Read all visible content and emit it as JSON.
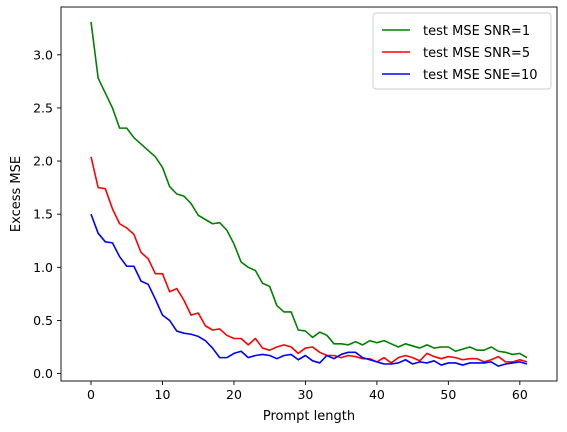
{
  "chart_data": {
    "type": "line",
    "title": "",
    "xlabel": "Prompt length",
    "ylabel": "Excess MSE",
    "xlim": [
      -4.2,
      65.2
    ],
    "ylim": [
      -0.07,
      3.45
    ],
    "xticks": [
      0,
      10,
      20,
      30,
      40,
      50,
      60
    ],
    "yticks": [
      0.0,
      0.5,
      1.0,
      1.5,
      2.0,
      2.5,
      3.0
    ],
    "grid": false,
    "legend_position": "top-right",
    "x": [
      0,
      1,
      2,
      3,
      4,
      5,
      6,
      7,
      8,
      9,
      10,
      11,
      12,
      13,
      14,
      15,
      16,
      17,
      18,
      19,
      20,
      21,
      22,
      23,
      24,
      25,
      26,
      27,
      28,
      29,
      30,
      31,
      32,
      33,
      34,
      35,
      36,
      37,
      38,
      39,
      40,
      41,
      42,
      43,
      44,
      45,
      46,
      47,
      48,
      49,
      50,
      51,
      52,
      53,
      54,
      55,
      56,
      57,
      58,
      59,
      60,
      61
    ],
    "series": [
      {
        "name": "test MSE SNR=1",
        "color": "#008000",
        "values": [
          3.31,
          2.78,
          2.64,
          2.5,
          2.31,
          2.31,
          2.22,
          2.16,
          2.1,
          2.04,
          1.94,
          1.76,
          1.69,
          1.67,
          1.6,
          1.49,
          1.45,
          1.41,
          1.42,
          1.35,
          1.22,
          1.05,
          1.0,
          0.97,
          0.85,
          0.82,
          0.64,
          0.58,
          0.58,
          0.41,
          0.4,
          0.34,
          0.39,
          0.36,
          0.28,
          0.28,
          0.27,
          0.3,
          0.27,
          0.31,
          0.29,
          0.31,
          0.28,
          0.25,
          0.28,
          0.26,
          0.24,
          0.27,
          0.24,
          0.25,
          0.25,
          0.21,
          0.23,
          0.25,
          0.22,
          0.22,
          0.25,
          0.21,
          0.2,
          0.18,
          0.19,
          0.15
        ]
      },
      {
        "name": "test MSE SNR=5",
        "color": "#ff0000",
        "values": [
          2.04,
          1.75,
          1.74,
          1.55,
          1.41,
          1.37,
          1.31,
          1.14,
          1.08,
          0.94,
          0.94,
          0.77,
          0.8,
          0.69,
          0.55,
          0.57,
          0.45,
          0.41,
          0.42,
          0.36,
          0.33,
          0.33,
          0.27,
          0.33,
          0.24,
          0.22,
          0.25,
          0.27,
          0.25,
          0.19,
          0.24,
          0.25,
          0.2,
          0.17,
          0.17,
          0.15,
          0.17,
          0.16,
          0.14,
          0.14,
          0.11,
          0.15,
          0.1,
          0.15,
          0.17,
          0.15,
          0.12,
          0.19,
          0.16,
          0.14,
          0.16,
          0.15,
          0.13,
          0.14,
          0.14,
          0.11,
          0.13,
          0.16,
          0.11,
          0.11,
          0.13,
          0.11
        ]
      },
      {
        "name": "test MSE SNE=10",
        "color": "#0000ff",
        "values": [
          1.5,
          1.32,
          1.24,
          1.23,
          1.1,
          1.01,
          1.01,
          0.87,
          0.84,
          0.7,
          0.55,
          0.5,
          0.4,
          0.38,
          0.37,
          0.35,
          0.31,
          0.24,
          0.15,
          0.15,
          0.19,
          0.21,
          0.15,
          0.17,
          0.18,
          0.17,
          0.14,
          0.17,
          0.18,
          0.13,
          0.17,
          0.12,
          0.1,
          0.17,
          0.14,
          0.18,
          0.2,
          0.2,
          0.15,
          0.13,
          0.11,
          0.09,
          0.09,
          0.1,
          0.13,
          0.09,
          0.11,
          0.1,
          0.12,
          0.08,
          0.1,
          0.1,
          0.08,
          0.1,
          0.1,
          0.1,
          0.11,
          0.07,
          0.09,
          0.1,
          0.11,
          0.09
        ]
      }
    ]
  }
}
